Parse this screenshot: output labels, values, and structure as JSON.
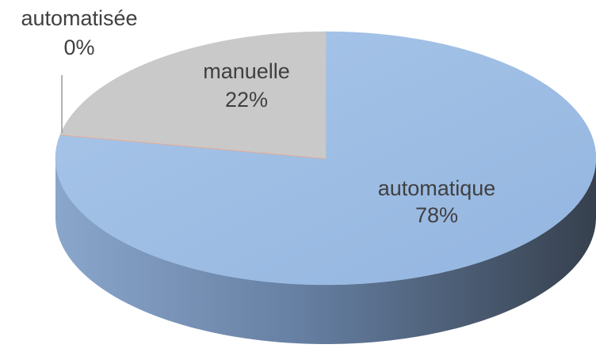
{
  "chart_data": {
    "type": "pie",
    "categories": [
      "automatique",
      "automatisée",
      "manuelle"
    ],
    "values": [
      78,
      0,
      22
    ],
    "value_labels": [
      "78%",
      "0%",
      "22%"
    ],
    "colors": [
      "#9dbce3",
      "#f4a582",
      "#c9c9c9"
    ]
  }
}
